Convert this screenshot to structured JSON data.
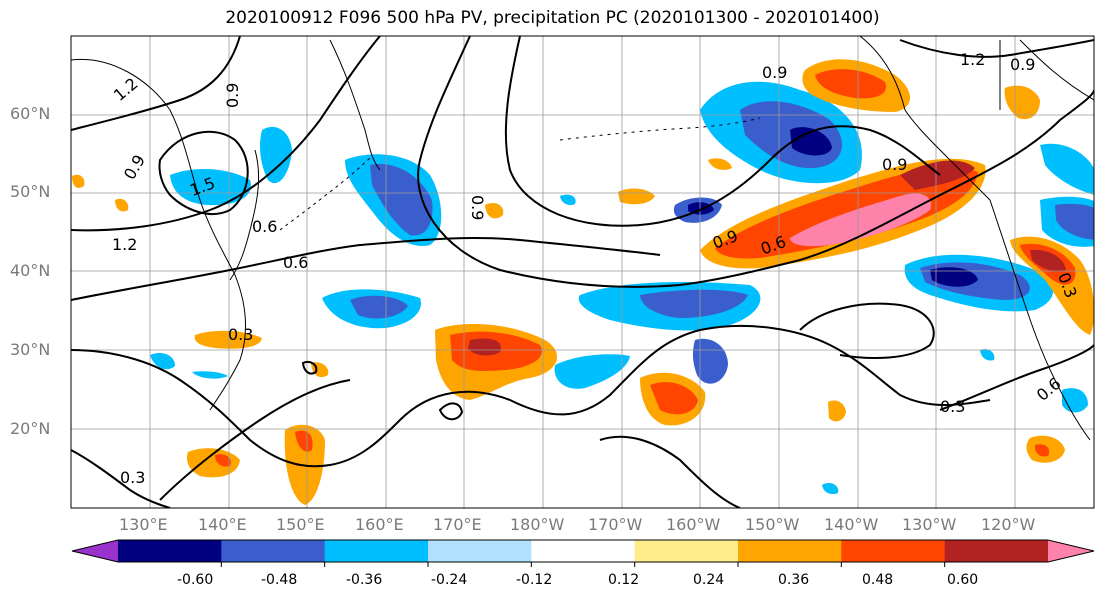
{
  "title": "2020100912 F096 500 hPa PV, precipitation PC (2020101300 - 2020101400)",
  "lat_labels": [
    "60°N",
    "50°N",
    "40°N",
    "30°N",
    "20°N"
  ],
  "lon_labels": [
    "130°E",
    "140°E",
    "150°E",
    "160°E",
    "170°E",
    "180°W",
    "170°W",
    "160°W",
    "150°W",
    "140°W",
    "130°W",
    "120°W"
  ],
  "contour_labels": [
    "1.2",
    "0.9",
    "0.9",
    "1.5",
    "0.6",
    "0.6",
    "1.2",
    "0.9",
    "0.3",
    "0.3",
    "0.9",
    "0.6",
    "0.9",
    "0.3",
    "0.9",
    "0.3",
    "0.6",
    "1.2",
    "0.9"
  ],
  "colorbar": {
    "ticks": [
      "-0.60",
      "-0.48",
      "-0.36",
      "-0.24",
      "-0.12",
      "0.12",
      "0.24",
      "0.36",
      "0.48",
      "0.60"
    ],
    "colors": [
      "#9932CC",
      "#000080",
      "#3A5FCD",
      "#00BFFF",
      "#B0E2FF",
      "#FFFFFF",
      "#FFEC8B",
      "#FFA500",
      "#FF4500",
      "#B22222",
      "#FF82AB"
    ]
  }
}
